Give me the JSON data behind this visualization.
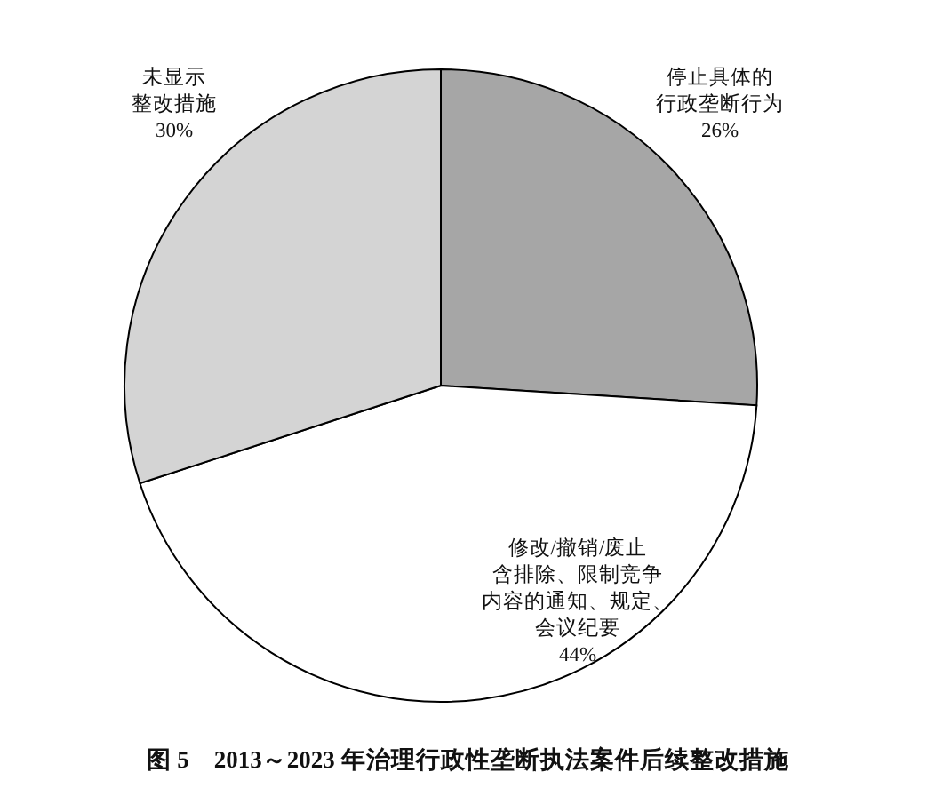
{
  "chart_data": {
    "type": "pie",
    "title": "图 5　2013～2023 年治理行政性垄断执法案件后续整改措施",
    "categories": [
      "停止具体的行政垄断行为",
      "修改/撤销/废止含排除、限制竞争内容的通知、规定、会议纪要",
      "未显示整改措施"
    ],
    "values": [
      26,
      44,
      30
    ],
    "value_labels": [
      "26%",
      "44%",
      "30%"
    ],
    "colors": [
      "#a6a6a6",
      "#ffffff",
      "#d4d4d4"
    ]
  }
}
